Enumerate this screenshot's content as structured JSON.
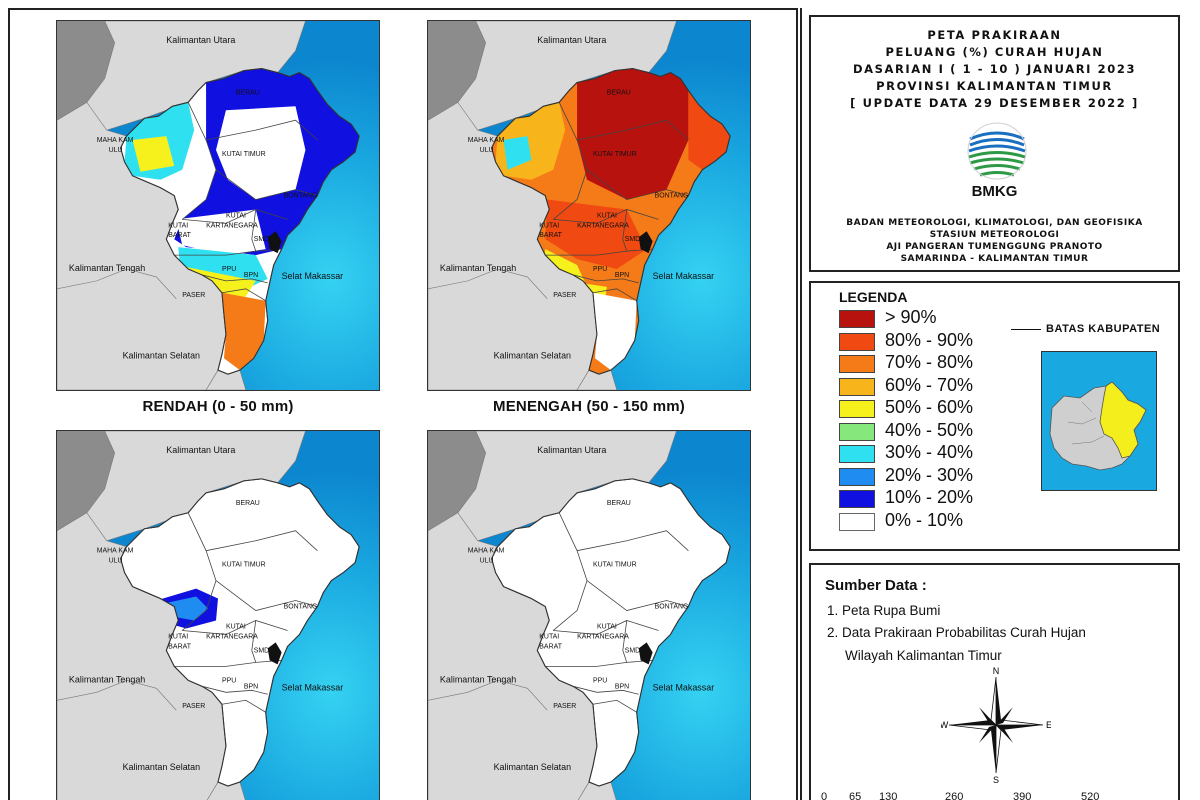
{
  "maps": [
    {
      "caption": "RENDAH (0 - 50 mm)",
      "labels": {
        "kaltara": "Kalimantan Utara",
        "berau": "BERAU",
        "mahakam_ulu_1": "MAHA KAM",
        "mahakam_ulu_2": "ULU",
        "kutai_timur": "KUTAI TIMUR",
        "bontang": "BONTANG",
        "kutai_kartanegara_1": "KUTAI",
        "kutai_kartanegara_2": "KARTANEGARA",
        "kutai_barat_1": "KUTAI",
        "kutai_barat_2": "BARAT",
        "kalteng": "Kalimantan Tengah",
        "smd": "SMD",
        "ppu": "PPU",
        "bpn": "BPN",
        "selat_makassar": "Selat Makassar",
        "paser": "PASER",
        "kalsel": "Kalimantan Selatan"
      }
    },
    {
      "caption": "MENENGAH (50 - 150 mm)",
      "labels": {
        "kaltara": "Kalimantan Utara",
        "berau": "BERAU",
        "mahakam_ulu_1": "MAHA KAM",
        "mahakam_ulu_2": "ULU",
        "kutai_timur": "KUTAI TIMUR",
        "bontang": "BONTANG",
        "kutai_kartanegara_1": "KUTAI",
        "kutai_kartanegara_2": "KARTANEGARA",
        "kutai_barat_1": "KUTAI",
        "kutai_barat_2": "BARAT",
        "kalteng": "Kalimantan Tengah",
        "smd": "SMD",
        "ppu": "PPU",
        "bpn": "BPN",
        "selat_makassar": "Selat Makassar",
        "paser": "PASER",
        "kalsel": "Kalimantan Selatan"
      }
    },
    {
      "caption": "",
      "labels": {
        "kaltara": "Kalimantan Utara",
        "berau": "BERAU",
        "mahakam_ulu_1": "MAHA KAM",
        "mahakam_ulu_2": "ULU",
        "kutai_timur": "KUTAI TIMUR",
        "bontang": "BONTANG",
        "kutai_kartanegara_1": "KUTAI",
        "kutai_kartanegara_2": "KARTANEGARA",
        "kutai_barat_1": "KUTAI",
        "kutai_barat_2": "BARAT",
        "kalteng": "Kalimantan Tengah",
        "smd": "SMD",
        "ppu": "PPU",
        "bpn": "BPN",
        "selat_makassar": "Selat Makassar",
        "paser": "PASER",
        "kalsel": "Kalimantan Selatan"
      }
    },
    {
      "caption": "",
      "labels": {
        "kaltara": "Kalimantan Utara",
        "berau": "BERAU",
        "mahakam_ulu_1": "MAHA KAM",
        "mahakam_ulu_2": "ULU",
        "kutai_timur": "KUTAI TIMUR",
        "bontang": "BONTANG",
        "kutai_kartanegara_1": "KUTAI",
        "kutai_kartanegara_2": "KARTANEGARA",
        "kutai_barat_1": "KUTAI",
        "kutai_barat_2": "BARAT",
        "kalteng": "Kalimantan Tengah",
        "smd": "SMD",
        "ppu": "PPU",
        "bpn": "BPN",
        "selat_makassar": "Selat Makassar",
        "paser": "PASER",
        "kalsel": "Kalimantan Selatan"
      }
    }
  ],
  "title": {
    "line1": "PETA PRAKIRAAN",
    "line2": "PELUANG (%) CURAH HUJAN",
    "line3": "DASARIAN I ( 1 - 10 ) JANUARI 2023",
    "line4": "PROVINSI KALIMANTAN TIMUR",
    "line5": "[ UPDATE DATA 29 DESEMBER 2022 ]",
    "logo_text": "BMKG",
    "agency1": "BADAN METEOROLOGI, KLIMATOLOGI, DAN GEOFISIKA",
    "agency2": "STASIUN METEOROLOGI",
    "agency3": "AJI PANGERAN TUMENGGUNG PRANOTO",
    "agency4": "SAMARINDA - KALIMANTAN TIMUR"
  },
  "legend": {
    "title": "LEGENDA",
    "items": [
      {
        "label": "> 90%",
        "color": "#b8120f"
      },
      {
        "label": "80% - 90%",
        "color": "#f04a12"
      },
      {
        "label": "70% - 80%",
        "color": "#f57b18"
      },
      {
        "label": "60% - 70%",
        "color": "#f8b51b"
      },
      {
        "label": "50% - 60%",
        "color": "#f6f01d"
      },
      {
        "label": "40% - 50%",
        "color": "#86e87c"
      },
      {
        "label": "30% - 40%",
        "color": "#2fe0f0"
      },
      {
        "label": "20% - 30%",
        "color": "#1e8cf0"
      },
      {
        "label": "10% - 20%",
        "color": "#1010e0"
      },
      {
        "label": "0% - 10%",
        "color": "#ffffff"
      }
    ],
    "boundary_label": "BATAS KABUPATEN"
  },
  "source": {
    "title": "Sumber Data :",
    "item1": "1. Peta Rupa Bumi",
    "item2": "2. Data Prakiraan Probabilitas Curah Hujan",
    "item2b": "Wilayah Kalimantan Timur",
    "compass": {
      "n": "N",
      "s": "S",
      "e": "E",
      "w": "W"
    },
    "scale": [
      "0",
      "65",
      "130",
      "260",
      "390",
      "520"
    ]
  },
  "colors": {
    "sea_deep": "#0f9bd6",
    "sea_mid": "#2bc4ec",
    "land_gray": "#8c8c8c",
    "land_light": "#d9d9d9"
  }
}
